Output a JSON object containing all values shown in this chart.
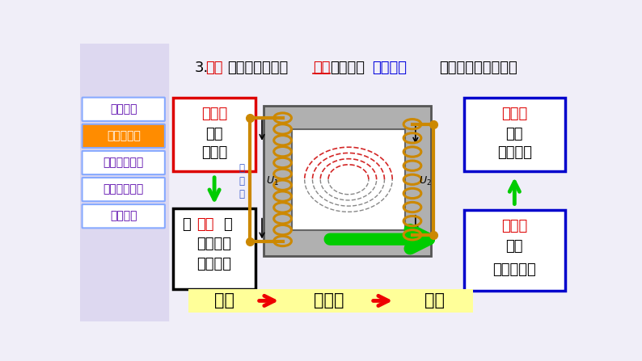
{
  "bg_color": "#f0eef8",
  "sidebar_bg": "#ddd8f0",
  "sidebar_items": [
    "新课引入",
    "认识变压器",
    "电压与匝数比",
    "电流与匝数比",
    "动态问题"
  ],
  "sidebar_active": 1,
  "sidebar_active_color": "#ff8c00",
  "sidebar_inactive_color": "#ffffff",
  "sidebar_text_color_active": "#ffffff",
  "sidebar_text_color_inactive": "#5500aa",
  "sidebar_border_color": "#88aaff",
  "box_left_border": "#dd0000",
  "box_left_bg": "#ffffff",
  "box_left2_border": "#000000",
  "box_left2_bg": "#ffffff",
  "box_right1_border": "#0000cc",
  "box_right1_bg": "#ffffff",
  "box_right2_border": "#0000cc",
  "box_right2_bg": "#ffffff",
  "arrow_green": "#00cc00",
  "arrow_red": "#ee0000",
  "energy_bar_color": "#ffff99",
  "energy_text": [
    "电能",
    "磁场能",
    "电能"
  ],
  "transformer_core_color": "#888888",
  "transformer_coil_color": "#cc8800",
  "transformer_flux_color": "#cc0000"
}
